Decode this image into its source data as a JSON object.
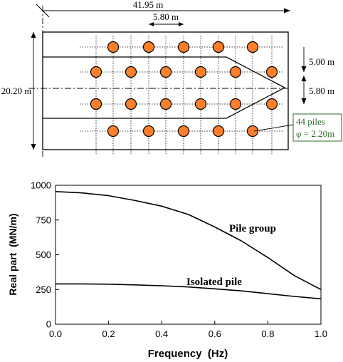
{
  "plan": {
    "dimensions": {
      "total_length": "41.95 m",
      "pile_spacing": "5.80 m",
      "total_width": "20.20 m",
      "row_spacing": "5.00 m",
      "center_offset": "5.80 m"
    },
    "callout": {
      "line1": "44 piles",
      "line2": "φ = 2.20m"
    },
    "colors": {
      "pile_fill": "#ff7f2a",
      "callout_text": "#2b6b2b"
    }
  },
  "chart_data": {
    "type": "line",
    "xlabel": "Frequency  (Hz)",
    "ylabel": "Real part  (MN/m)",
    "xlim": [
      0.0,
      1.0
    ],
    "ylim": [
      0,
      1000
    ],
    "xticks": [
      "0.0",
      "0.2",
      "0.4",
      "0.6",
      "0.8",
      "1.0"
    ],
    "yticks": [
      "0",
      "250",
      "500",
      "750",
      "1000"
    ],
    "grid": false,
    "series": [
      {
        "name": "Pile group",
        "x": [
          0.0,
          0.1,
          0.2,
          0.3,
          0.4,
          0.5,
          0.6,
          0.7,
          0.8,
          0.9,
          1.0
        ],
        "y": [
          955,
          945,
          925,
          890,
          850,
          790,
          700,
          600,
          480,
          350,
          250
        ]
      },
      {
        "name": "Isolated pile",
        "x": [
          0.0,
          0.1,
          0.2,
          0.3,
          0.4,
          0.5,
          0.6,
          0.7,
          0.8,
          0.9,
          1.0
        ],
        "y": [
          290,
          290,
          288,
          283,
          277,
          268,
          255,
          240,
          220,
          200,
          183
        ]
      }
    ]
  }
}
